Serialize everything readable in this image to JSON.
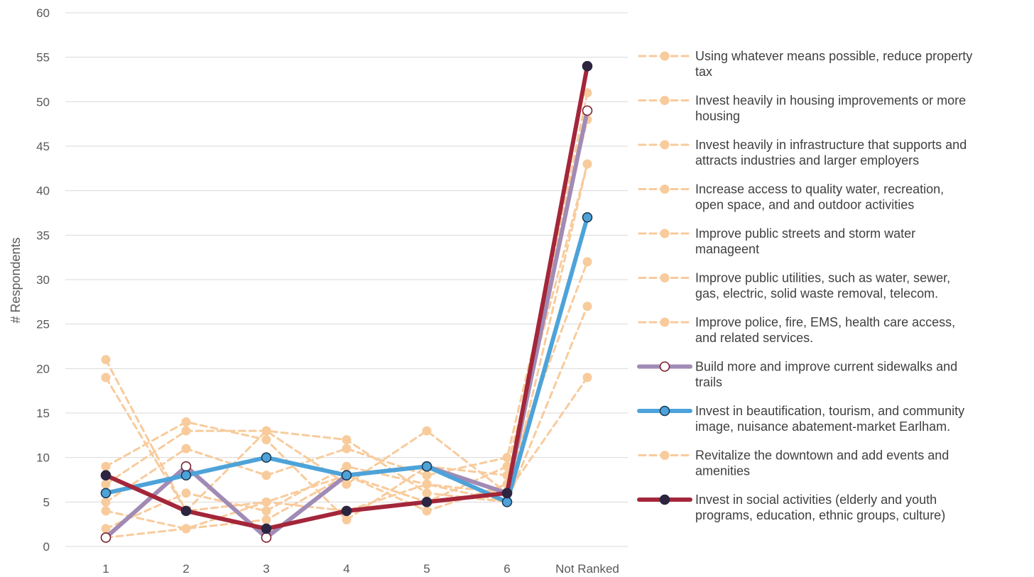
{
  "chart_data": {
    "type": "line",
    "title": "",
    "xlabel": "",
    "ylabel": "# Respondents",
    "categories": [
      "1",
      "2",
      "3",
      "4",
      "5",
      "6",
      "Not Ranked"
    ],
    "ylim": [
      0,
      60
    ],
    "yticks": [
      0,
      5,
      10,
      15,
      20,
      25,
      30,
      35,
      40,
      45,
      50,
      55,
      60
    ],
    "grid": "horizontal",
    "legend_position": "right",
    "series": [
      {
        "name": "Using whatever means possible, reduce property tax",
        "values": [
          21,
          4,
          13,
          7,
          13,
          6,
          19
        ],
        "style": "dashed",
        "color": "#F8CB9C",
        "marker_fill": "#F8CB9C",
        "marker_stroke": "#F8CB9C"
      },
      {
        "name": "Invest heavily in housing improvements or more housing",
        "values": [
          19,
          4,
          5,
          4,
          7,
          5,
          27
        ],
        "style": "dashed",
        "color": "#F8CB9C",
        "marker_fill": "#F8CB9C",
        "marker_stroke": "#F8CB9C"
      },
      {
        "name": "Invest heavily in infrastructure that supports and attracts industries and larger employers",
        "values": [
          9,
          14,
          12,
          3,
          9,
          8,
          32
        ],
        "style": "dashed",
        "color": "#F8CB9C",
        "marker_fill": "#F8CB9C",
        "marker_stroke": "#F8CB9C"
      },
      {
        "name": "Increase access to quality water, recreation, open space, and and outdoor activities",
        "values": [
          7,
          13,
          13,
          12,
          6,
          5,
          43
        ],
        "style": "dashed",
        "color": "#F8CB9C",
        "marker_fill": "#F8CB9C",
        "marker_stroke": "#F8CB9C"
      },
      {
        "name": "Improve public streets and storm water manageent",
        "values": [
          5,
          11,
          8,
          11,
          8,
          10,
          48
        ],
        "style": "dashed",
        "color": "#F8CB9C",
        "marker_fill": "#F8CB9C",
        "marker_stroke": "#F8CB9C"
      },
      {
        "name": "Improve public utilities, such as water, sewer, gas, electric, solid waste removal, telecom.",
        "values": [
          4,
          2,
          3,
          8,
          4,
          7,
          51
        ],
        "style": "dashed",
        "color": "#F8CB9C",
        "marker_fill": "#F8CB9C",
        "marker_stroke": "#F8CB9C"
      },
      {
        "name": "Improve police, fire, EMS, health care access, and related services.",
        "values": [
          2,
          6,
          4,
          9,
          7,
          6,
          54
        ],
        "style": "dashed",
        "color": "#F8CB9C",
        "marker_fill": "#F8CB9C",
        "marker_stroke": "#F8CB9C"
      },
      {
        "name": "Build more and improve current sidewalks and trails",
        "values": [
          1,
          9,
          1,
          8,
          9,
          6,
          49
        ],
        "style": "solid",
        "color": "#A18BB5",
        "marker_fill": "#ffffff",
        "marker_stroke": "#7B1F2C"
      },
      {
        "name": "Invest in beautification, tourism, and community image, nuisance abatement-market Earlham.",
        "values": [
          6,
          8,
          10,
          8,
          9,
          5,
          37
        ],
        "style": "solid",
        "color": "#4DA3D9",
        "marker_fill": "#4DA3D9",
        "marker_stroke": "#1F3B55"
      },
      {
        "name": "Revitalize the downtown and add events and amenities",
        "values": [
          1,
          2,
          5,
          8,
          5,
          9,
          43
        ],
        "style": "dashed",
        "color": "#F8CB9C",
        "marker_fill": "#F8CB9C",
        "marker_stroke": "#F8CB9C"
      },
      {
        "name": "Invest in social activities (elderly and youth programs, education, ethnic groups, culture)",
        "values": [
          8,
          4,
          2,
          4,
          5,
          6,
          54
        ],
        "style": "solid",
        "color": "#A3263A",
        "marker_fill": "#2D2540",
        "marker_stroke": "#2D2540"
      }
    ],
    "legend": [
      {
        "series": 0,
        "lines": [
          "Using whatever means possible, reduce property",
          "tax"
        ]
      },
      {
        "series": 1,
        "lines": [
          "Invest heavily in housing improvements or more",
          "housing"
        ]
      },
      {
        "series": 2,
        "lines": [
          "Invest heavily in infrastructure that supports and",
          "attracts industries and larger employers"
        ]
      },
      {
        "series": 3,
        "lines": [
          "Increase access to quality water, recreation,",
          "open space, and and outdoor activities"
        ]
      },
      {
        "series": 4,
        "lines": [
          "Improve public streets and storm water",
          "manageent"
        ]
      },
      {
        "series": 5,
        "lines": [
          "Improve public utilities, such as water, sewer,",
          "gas, electric, solid waste removal, telecom."
        ]
      },
      {
        "series": 6,
        "lines": [
          "Improve police, fire, EMS, health care access,",
          "and related services."
        ]
      },
      {
        "series": 7,
        "lines": [
          "Build more and improve current sidewalks and",
          "trails"
        ]
      },
      {
        "series": 8,
        "lines": [
          "Invest in beautification, tourism, and community",
          "image, nuisance abatement-market Earlham."
        ]
      },
      {
        "series": 9,
        "lines": [
          "Revitalize the downtown and add events and",
          "amenities"
        ]
      },
      {
        "series": 10,
        "lines": [
          "Invest in social activities (elderly and youth",
          "programs, education, ethnic groups, culture)"
        ]
      }
    ]
  }
}
